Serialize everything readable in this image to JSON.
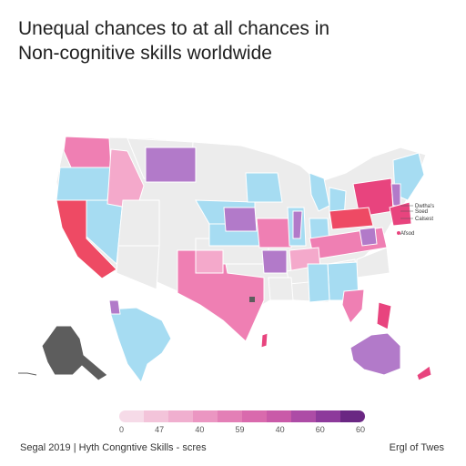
{
  "title": {
    "line1": "Unequal chances to at all chances in",
    "line2": "Non-cognitive skills worldwide"
  },
  "annotations": {
    "ne_label_1": "Dwtha's",
    "ne_label_2": "Soed",
    "ne_label_3": "Calsest",
    "ne_label_4": "Afsod"
  },
  "legend": {
    "ticks": [
      "0",
      "47",
      "40",
      "59",
      "40",
      "60",
      "60"
    ],
    "colors": [
      "#f6dbe8",
      "#f3c4da",
      "#f0afcf",
      "#eb96c2",
      "#e37fb6",
      "#d96aad",
      "#c95aa8",
      "#ad4ca6",
      "#8d3a9b",
      "#6a2783"
    ]
  },
  "footer": {
    "left": "Segal 2019  |  Hyth Congntive Skills - scres",
    "right": "Ergl of Twes"
  },
  "colors": {
    "blue": "#a6dcf2",
    "pink_light": "#f4a9cb",
    "pink": "#ef7fb3",
    "magenta": "#e8447e",
    "red": "#ee4a64",
    "purple": "#b27ac9",
    "gray": "#eaeaea",
    "dark": "#5d5d5d"
  }
}
